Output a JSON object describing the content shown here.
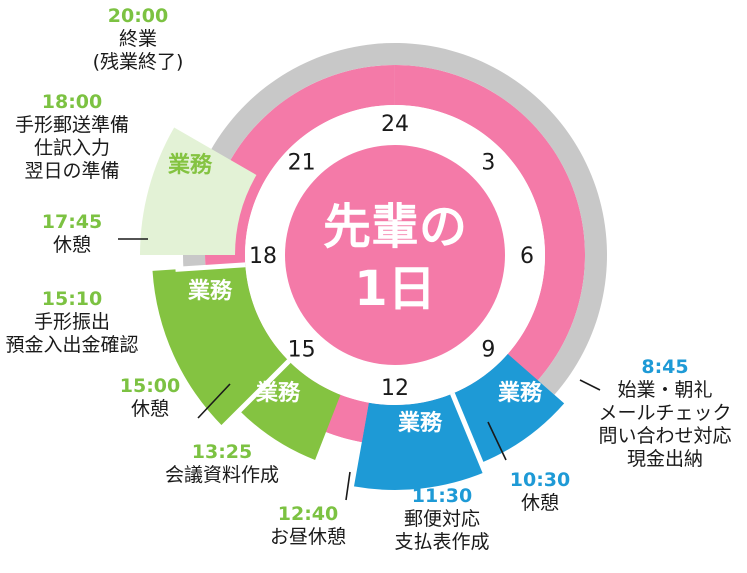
{
  "title": {
    "line1": "先輩の",
    "line2": "1日"
  },
  "clock": {
    "numbers": [
      {
        "label": "24",
        "hour": 0
      },
      {
        "label": "3",
        "hour": 3
      },
      {
        "label": "6",
        "hour": 6
      },
      {
        "label": "9",
        "hour": 9
      },
      {
        "label": "12",
        "hour": 12
      },
      {
        "label": "15",
        "hour": 15
      },
      {
        "label": "18",
        "hour": 18
      },
      {
        "label": "21",
        "hour": 21
      }
    ]
  },
  "segments": [
    {
      "label": "",
      "start": 17.75,
      "end": 8.75,
      "kind": "offtime"
    },
    {
      "label": "業務",
      "start": 8.75,
      "end": 10.5,
      "kind": "work-blue"
    },
    {
      "label": "業務",
      "start": 10.5,
      "end": 12.67,
      "kind": "work-blue"
    },
    {
      "label": "",
      "start": 12.67,
      "end": 13.42,
      "kind": "lunch"
    },
    {
      "label": "業務",
      "start": 13.42,
      "end": 15.0,
      "kind": "work-green"
    },
    {
      "label": "業務",
      "start": 15.0,
      "end": 17.75,
      "kind": "work-green"
    },
    {
      "label": "業務",
      "start": 18.0,
      "end": 20.0,
      "kind": "overtime"
    }
  ],
  "events": [
    {
      "time": "20:00",
      "lines": [
        "終業",
        "(残業終了)"
      ],
      "color": "green"
    },
    {
      "time": "18:00",
      "lines": [
        "手形郵送準備",
        "仕訳入力",
        "翌日の準備"
      ],
      "color": "green"
    },
    {
      "time": "17:45",
      "lines": [
        "休憩"
      ],
      "color": "green"
    },
    {
      "time": "15:10",
      "lines": [
        "手形振出",
        "預金入出金確認"
      ],
      "color": "green"
    },
    {
      "time": "15:00",
      "lines": [
        "休憩"
      ],
      "color": "green"
    },
    {
      "time": "13:25",
      "lines": [
        "会議資料作成"
      ],
      "color": "green"
    },
    {
      "time": "12:40",
      "lines": [
        "お昼休憩"
      ],
      "color": "green"
    },
    {
      "time": "11:30",
      "lines": [
        "郵便対応",
        "支払表作成"
      ],
      "color": "blue"
    },
    {
      "time": "10:30",
      "lines": [
        "休憩"
      ],
      "color": "blue"
    },
    {
      "time": "8:45",
      "lines": [
        "始業・朝礼",
        "メールチェック",
        "問い合わせ対応",
        "現金出納"
      ],
      "color": "blue"
    }
  ],
  "colors": {
    "pink": "#f47aa8",
    "gray": "#c8c8c8",
    "blue": "#1e9ad6",
    "green": "#84c341",
    "lightgreen": "#e3f2d6",
    "white": "#ffffff"
  }
}
